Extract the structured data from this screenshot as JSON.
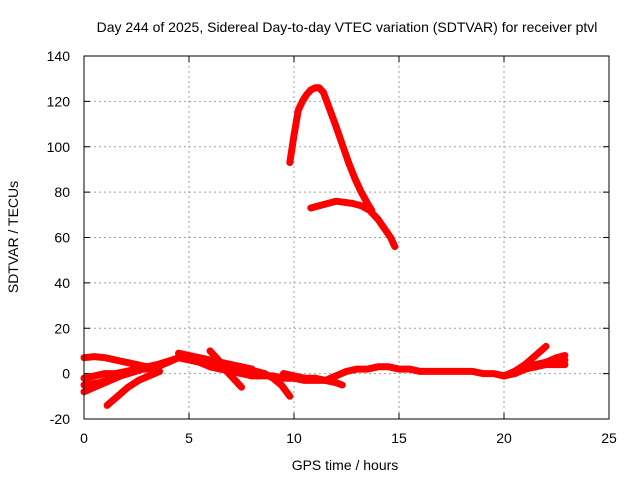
{
  "chart_data": {
    "type": "line",
    "title": "Day 244 of 2025, Sidereal Day-to-day VTEC variation (SDTVAR) for receiver ptvl",
    "xlabel": "GPS time / hours",
    "ylabel": "SDTVAR / TECUs",
    "xlim": [
      0,
      25
    ],
    "ylim": [
      -20,
      140
    ],
    "xticks": [
      0,
      5,
      10,
      15,
      20,
      25
    ],
    "yticks": [
      -20,
      0,
      20,
      40,
      60,
      80,
      100,
      120,
      140
    ],
    "grid": true,
    "series_color": "#ff0000",
    "series": [
      {
        "x": [
          9.8,
          10.0,
          10.2,
          10.4,
          10.6,
          10.8,
          11.0,
          11.2,
          11.4,
          11.6,
          11.8,
          12.0,
          12.3,
          12.6,
          12.9,
          13.2,
          13.5,
          13.7
        ],
        "values": [
          93,
          105,
          116,
          120,
          123,
          125,
          126,
          126,
          124,
          119,
          114,
          109,
          101,
          93,
          86,
          80,
          75,
          72
        ]
      },
      {
        "x": [
          10.8,
          11.2,
          11.6,
          12.0,
          12.4,
          12.8,
          13.2,
          13.6,
          14.0,
          14.3,
          14.6,
          14.8
        ],
        "values": [
          73,
          74,
          75,
          76,
          75.5,
          75,
          74,
          72,
          68,
          64,
          60,
          56
        ]
      },
      {
        "x": [
          0.0,
          0.5,
          1.0,
          1.5,
          2.0,
          2.5,
          3.0,
          3.5,
          4.0,
          4.5,
          5.0,
          5.5,
          6.0,
          6.5,
          7.0,
          7.5,
          8.0,
          8.5,
          9.0,
          9.5,
          10.0,
          10.5,
          11.0,
          11.5,
          12.0,
          12.5,
          13.0,
          13.5,
          14.0,
          14.5,
          15.0,
          15.5,
          16.0,
          16.5,
          17.0,
          17.5,
          18.0,
          18.5,
          19.0,
          19.5,
          20.0,
          20.5,
          21.0,
          21.5,
          22.0,
          22.5,
          22.9
        ],
        "values": [
          -2,
          -1,
          0,
          0,
          1,
          2,
          2,
          3,
          5,
          7,
          6,
          5,
          3,
          2,
          1,
          0,
          -1,
          -1,
          -1,
          -2,
          -2,
          -3,
          -3,
          -3,
          -1,
          1,
          2,
          2,
          3,
          3,
          2,
          2,
          1,
          1,
          1,
          1,
          1,
          1,
          0,
          0,
          -1,
          0,
          2,
          4,
          5,
          6,
          6
        ]
      },
      {
        "x": [
          0.0,
          0.5,
          1.0,
          1.5,
          2.0,
          2.5,
          3.0
        ],
        "values": [
          7,
          7.5,
          7,
          6,
          5,
          4,
          3
        ]
      },
      {
        "x": [
          0.0,
          0.5,
          1.0,
          1.5,
          2.0,
          2.5,
          3.0,
          3.5,
          4.0
        ],
        "values": [
          -8,
          -6,
          -4,
          -2,
          0,
          2,
          3,
          4,
          5
        ]
      },
      {
        "x": [
          1.1,
          1.6,
          2.1,
          2.6,
          3.1,
          3.6
        ],
        "values": [
          -14,
          -10,
          -6,
          -3,
          -1,
          1
        ]
      },
      {
        "x": [
          0.0,
          0.7,
          1.4,
          2.1,
          2.8,
          3.5,
          4.2,
          4.8
        ],
        "values": [
          -5,
          -4,
          -2,
          0,
          2,
          4,
          6,
          8
        ]
      },
      {
        "x": [
          4.5,
          5.0,
          5.5,
          6.0,
          6.5,
          7.0,
          7.5,
          8.0
        ],
        "values": [
          9,
          8,
          7,
          6,
          5,
          4,
          3,
          2
        ]
      },
      {
        "x": [
          6.0,
          6.4,
          6.8,
          7.2,
          7.5
        ],
        "values": [
          10,
          6,
          1,
          -3,
          -6
        ]
      },
      {
        "x": [
          7.4,
          7.8,
          8.2,
          8.6,
          9.0,
          9.4,
          9.8
        ],
        "values": [
          3,
          2,
          1,
          0,
          -2,
          -5,
          -10
        ]
      },
      {
        "x": [
          9.5,
          10.0,
          10.5,
          11.0,
          11.5,
          12.0,
          12.3
        ],
        "values": [
          0,
          -1,
          -2,
          -2,
          -3,
          -4,
          -5
        ]
      },
      {
        "x": [
          20.0,
          20.5,
          21.0,
          21.5,
          22.0
        ],
        "values": [
          -1,
          1,
          4,
          8,
          12
        ]
      },
      {
        "x": [
          20.5,
          21.0,
          21.5,
          22.0,
          22.5,
          22.9
        ],
        "values": [
          0,
          2,
          3,
          4,
          4,
          4
        ]
      },
      {
        "x": [
          21.5,
          22.0,
          22.5,
          22.9
        ],
        "values": [
          3,
          5,
          7,
          8
        ]
      }
    ]
  }
}
